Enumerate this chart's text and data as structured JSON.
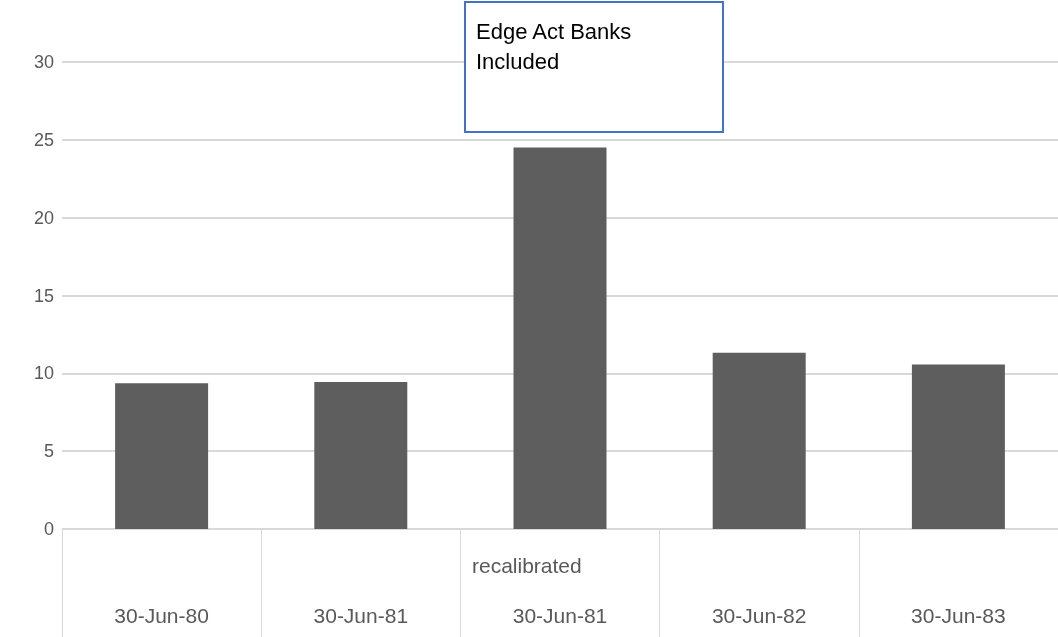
{
  "chart_data": {
    "type": "bar",
    "categories": [
      "30-Jun-80",
      "30-Jun-81",
      "30-Jun-81",
      "30-Jun-82",
      "30-Jun-83"
    ],
    "values": [
      9.36,
      9.45,
      24.5,
      11.33,
      10.56
    ],
    "color": "#5e5e5e",
    "ylim": [
      0,
      30
    ],
    "yticks": [
      0,
      5,
      10,
      15,
      20,
      25,
      30
    ],
    "grid": "y",
    "annotations": [
      "Edge Act Banks Included",
      "recalibrated"
    ]
  }
}
